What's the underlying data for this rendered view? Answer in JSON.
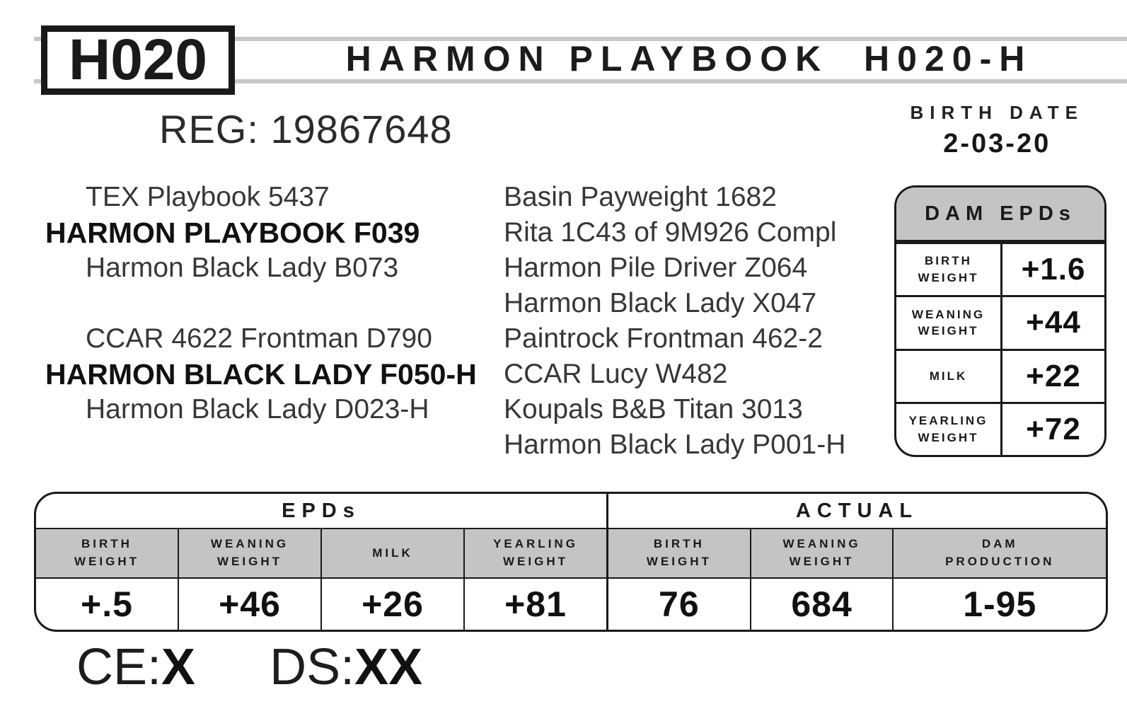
{
  "header": {
    "lot_tag": "H020",
    "title": "HARMON PLAYBOOK  H020-H",
    "reg": "REG: 19867648",
    "birth_date_label": "BIRTH DATE",
    "birth_date_value": "2-03-20"
  },
  "pedigree": {
    "sire_group": {
      "paternal_grandsire": "TEX Playbook 5437",
      "sire": "HARMON PLAYBOOK F039",
      "paternal_granddam": "Harmon Black Lady B073"
    },
    "dam_group": {
      "maternal_grandsire": "CCAR 4622 Frontman D790",
      "dam": "HARMON BLACK LADY F050-H",
      "maternal_granddam": "Harmon Black Lady D023-H"
    },
    "great_grandparents": [
      "Basin Payweight 1682",
      "Rita 1C43 of 9M926 Compl",
      "Harmon Pile Driver Z064",
      "Harmon Black Lady X047",
      "Paintrock Frontman 462-2",
      "CCAR Lucy W482",
      "Koupals B&B Titan 3013",
      "Harmon Black Lady P001-H"
    ]
  },
  "dam_epds": {
    "title": "DAM EPDs",
    "rows": [
      {
        "label": "BIRTH\nWEIGHT",
        "value": "+1.6"
      },
      {
        "label": "WEANING\nWEIGHT",
        "value": "+44"
      },
      {
        "label": "MILK",
        "value": "+22"
      },
      {
        "label": "YEARLING\nWEIGHT",
        "value": "+72"
      }
    ]
  },
  "performance_table": {
    "epds_header": "EPDs",
    "actual_header": "ACTUAL",
    "epds_columns": [
      {
        "label": "BIRTH\nWEIGHT",
        "value": "+.5"
      },
      {
        "label": "WEANING\nWEIGHT",
        "value": "+46"
      },
      {
        "label": "MILK",
        "value": "+26"
      },
      {
        "label": "YEARLING\nWEIGHT",
        "value": "+81"
      }
    ],
    "actual_columns": [
      {
        "label": "BIRTH\nWEIGHT",
        "value": "76"
      },
      {
        "label": "WEANING\nWEIGHT",
        "value": "684"
      },
      {
        "label": "DAM\nPRODUCTION",
        "value": "1-95"
      }
    ]
  },
  "footer": {
    "ce_label": "CE:",
    "ce_value": "X",
    "ds_label": "DS:",
    "ds_value": "XX"
  },
  "colors": {
    "band_gray": "#c4c4c4",
    "rule_gray": "#c8c8c8",
    "border_ink": "#1a1a1a"
  }
}
